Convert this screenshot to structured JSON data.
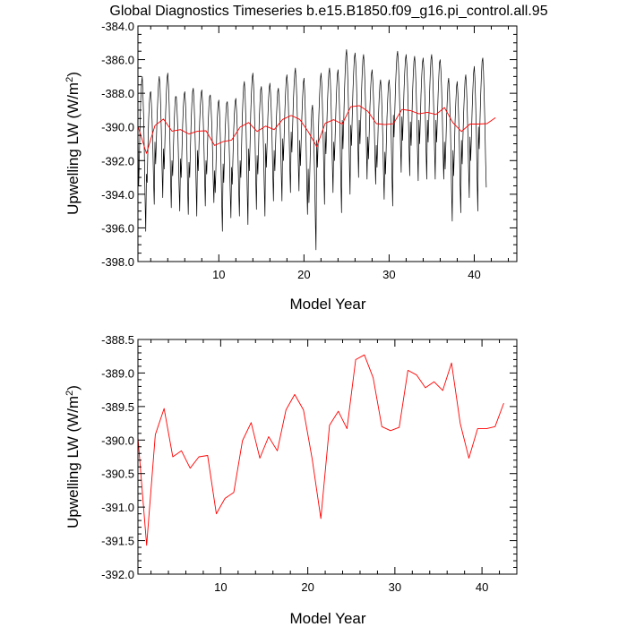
{
  "title": "Global Diagnostics Timeseries b.e15.B1850.f09_g16.pi_control.all.95",
  "chart_data": [
    {
      "type": "line",
      "xlabel": "Model Year",
      "ylabel_prefix": "Upwelling LW (W/m",
      "ylabel_sup": "2",
      "ylabel_suffix": ")",
      "xlim": [
        0.5,
        45
      ],
      "ylim": [
        -398.0,
        -384.0
      ],
      "xticks": [
        10,
        20,
        30,
        40
      ],
      "xtick_labels": [
        "10",
        "20",
        "30",
        "40"
      ],
      "yticks": [
        -398,
        -396,
        -394,
        -392,
        -390,
        -388,
        -386,
        -384
      ],
      "ytick_labels": [
        "-398.0",
        "-396.0",
        "-394.0",
        "-392.0",
        "-390.0",
        "-388.0",
        "-386.0",
        "-384.0"
      ],
      "x_minor_step": 2,
      "y_minor_step": 0.5,
      "series": [
        {
          "name": "monthly",
          "color": "#000000",
          "mode": "monthly",
          "start_year": 0.5,
          "dt": 0.08333,
          "values": [
            -390.0,
            -393.5,
            -391.9,
            -389.7,
            -388.3,
            -387.4,
            -387.0,
            -387.9,
            -389.3,
            -391.4,
            -394.1,
            -396.2,
            -392.8,
            -393.3,
            -391.3,
            -389.6,
            -388.6,
            -388.0,
            -387.9,
            -388.6,
            -389.6,
            -391.1,
            -393.1,
            -394.6,
            -390.9,
            -392.2,
            -390.8,
            -389.4,
            -388.3,
            -387.4,
            -387.0,
            -387.5,
            -388.6,
            -390.2,
            -392.4,
            -394.2,
            -391.3,
            -392.5,
            -390.9,
            -389.2,
            -388.0,
            -387.1,
            -386.8,
            -387.5,
            -388.7,
            -390.5,
            -392.9,
            -394.8,
            -392.0,
            -392.9,
            -391.3,
            -389.8,
            -388.8,
            -388.2,
            -388.2,
            -388.9,
            -390.0,
            -391.5,
            -393.5,
            -395.0,
            -391.9,
            -393.0,
            -391.5,
            -389.9,
            -388.8,
            -388.1,
            -387.9,
            -388.6,
            -389.8,
            -391.4,
            -393.5,
            -395.2,
            -392.1,
            -393.0,
            -391.3,
            -389.7,
            -388.6,
            -387.9,
            -387.7,
            -388.4,
            -389.7,
            -391.4,
            -393.6,
            -395.3,
            -391.4,
            -392.6,
            -391.2,
            -389.7,
            -388.7,
            -388.0,
            -387.8,
            -388.5,
            -389.6,
            -391.1,
            -393.1,
            -394.7,
            -392.0,
            -392.8,
            -391.2,
            -389.8,
            -388.8,
            -388.2,
            -388.1,
            -388.8,
            -389.8,
            -391.2,
            -393.1,
            -394.5,
            -392.6,
            -393.9,
            -392.4,
            -390.6,
            -389.4,
            -388.6,
            -388.4,
            -389.1,
            -390.4,
            -392.1,
            -394.4,
            -396.2,
            -392.2,
            -393.3,
            -391.7,
            -390.2,
            -389.2,
            -388.6,
            -388.5,
            -389.2,
            -390.3,
            -391.8,
            -393.8,
            -395.4,
            -392.4,
            -393.4,
            -391.8,
            -390.2,
            -389.2,
            -388.5,
            -388.3,
            -389.0,
            -390.1,
            -391.7,
            -393.7,
            -395.3,
            -392.0,
            -393.0,
            -391.4,
            -389.6,
            -388.4,
            -387.6,
            -387.3,
            -388.0,
            -389.4,
            -391.3,
            -393.8,
            -395.8,
            -391.3,
            -392.6,
            -391.0,
            -389.2,
            -388.0,
            -387.1,
            -386.8,
            -387.5,
            -388.8,
            -390.6,
            -393.0,
            -394.9,
            -391.7,
            -392.8,
            -391.2,
            -389.6,
            -388.6,
            -387.8,
            -387.6,
            -388.4,
            -389.6,
            -391.3,
            -393.5,
            -395.3,
            -391.0,
            -392.4,
            -391.0,
            -389.5,
            -388.5,
            -387.7,
            -387.4,
            -388.0,
            -389.1,
            -390.6,
            -392.7,
            -394.4,
            -391.4,
            -392.6,
            -391.0,
            -389.6,
            -388.6,
            -387.9,
            -387.7,
            -388.3,
            -389.3,
            -390.7,
            -392.7,
            -394.4,
            -390.7,
            -392.0,
            -390.6,
            -389.1,
            -388.0,
            -387.2,
            -386.9,
            -387.5,
            -388.6,
            -390.2,
            -392.3,
            -393.9,
            -390.3,
            -391.5,
            -390.0,
            -388.5,
            -387.5,
            -386.8,
            -386.5,
            -387.2,
            -388.3,
            -389.9,
            -392.1,
            -393.8,
            -390.8,
            -392.3,
            -390.9,
            -389.4,
            -388.3,
            -387.4,
            -387.1,
            -387.8,
            -389.1,
            -390.9,
            -393.3,
            -395.2,
            -392.5,
            -394.5,
            -393.1,
            -391.3,
            -390.0,
            -389.0,
            -388.7,
            -389.5,
            -390.9,
            -392.8,
            -395.3,
            -397.3,
            -390.8,
            -392.4,
            -390.9,
            -389.3,
            -388.1,
            -387.2,
            -386.8,
            -387.4,
            -388.6,
            -390.3,
            -392.6,
            -394.6,
            -390.3,
            -391.6,
            -390.2,
            -388.7,
            -387.6,
            -386.8,
            -386.5,
            -387.1,
            -388.3,
            -389.9,
            -392.1,
            -393.9,
            -390.9,
            -392.0,
            -390.5,
            -389.0,
            -387.8,
            -386.9,
            -386.6,
            -387.4,
            -388.8,
            -390.6,
            -393.1,
            -395.1,
            -389.6,
            -391.3,
            -389.8,
            -388.0,
            -386.8,
            -385.8,
            -385.4,
            -386.1,
            -387.5,
            -389.4,
            -392.0,
            -394.0,
            -389.9,
            -391.1,
            -389.5,
            -387.9,
            -386.8,
            -385.9,
            -385.6,
            -386.2,
            -387.4,
            -389.0,
            -391.2,
            -393.0,
            -389.6,
            -391.0,
            -389.6,
            -388.1,
            -386.9,
            -386.0,
            -385.7,
            -386.3,
            -387.5,
            -389.1,
            -391.3,
            -393.1,
            -390.6,
            -391.9,
            -390.4,
            -388.8,
            -387.7,
            -386.9,
            -386.6,
            -387.2,
            -388.3,
            -389.8,
            -391.8,
            -393.4,
            -391.1,
            -392.4,
            -391.0,
            -389.4,
            -388.3,
            -387.5,
            -387.2,
            -387.8,
            -389.0,
            -390.5,
            -392.6,
            -394.3,
            -391.5,
            -392.8,
            -391.2,
            -389.5,
            -388.4,
            -387.5,
            -387.2,
            -387.8,
            -389.0,
            -390.7,
            -392.9,
            -394.7,
            -389.3,
            -390.6,
            -389.2,
            -387.7,
            -386.6,
            -385.8,
            -385.5,
            -386.1,
            -387.2,
            -388.8,
            -391.0,
            -392.7,
            -389.4,
            -390.8,
            -389.4,
            -387.9,
            -386.8,
            -386.0,
            -385.7,
            -386.3,
            -387.4,
            -389.0,
            -391.1,
            -392.9,
            -389.7,
            -391.1,
            -389.7,
            -388.1,
            -387.0,
            -386.1,
            -385.8,
            -386.4,
            -387.6,
            -389.2,
            -391.4,
            -393.2,
            -389.6,
            -391.0,
            -389.6,
            -388.1,
            -387.0,
            -386.2,
            -385.9,
            -386.5,
            -387.6,
            -389.2,
            -391.3,
            -393.1,
            -389.6,
            -390.9,
            -389.5,
            -388.0,
            -386.9,
            -386.0,
            -385.7,
            -386.3,
            -387.5,
            -389.1,
            -391.3,
            -393.1,
            -389.6,
            -390.9,
            -389.5,
            -388.1,
            -387.0,
            -386.2,
            -386.0,
            -386.6,
            -387.7,
            -389.3,
            -391.4,
            -393.1,
            -390.9,
            -392.5,
            -391.0,
            -389.4,
            -388.3,
            -387.4,
            -387.1,
            -387.8,
            -389.2,
            -391.1,
            -393.7,
            -395.6,
            -391.4,
            -392.9,
            -391.3,
            -389.6,
            -388.5,
            -387.6,
            -387.3,
            -388.0,
            -389.3,
            -391.0,
            -393.3,
            -395.1,
            -390.8,
            -392.2,
            -390.7,
            -389.2,
            -388.1,
            -387.2,
            -386.9,
            -387.5,
            -388.7,
            -390.3,
            -392.4,
            -394.2,
            -390.6,
            -392.0,
            -390.6,
            -389.0,
            -387.8,
            -386.8,
            -386.4,
            -387.1,
            -388.5,
            -390.4,
            -392.9,
            -395.0,
            -390.0,
            -391.3,
            -389.8,
            -388.2,
            -387.0,
            -386.1,
            -385.9,
            -386.7,
            -388.0,
            -389.7,
            -391.9,
            -393.6
          ]
        },
        {
          "name": "annual",
          "color": "#ff0000",
          "mode": "annual",
          "start_year": 0.5,
          "values": [
            -389.96,
            -391.57,
            -389.92,
            -389.53,
            -390.25,
            -390.16,
            -390.42,
            -390.25,
            -390.23,
            -391.1,
            -390.87,
            -390.78,
            -390.01,
            -389.74,
            -390.27,
            -389.95,
            -390.16,
            -389.55,
            -389.32,
            -389.55,
            -390.28,
            -391.17,
            -389.78,
            -389.57,
            -389.83,
            -388.8,
            -388.73,
            -389.07,
            -389.8,
            -389.86,
            -389.81,
            -388.96,
            -389.03,
            -389.22,
            -389.13,
            -389.26,
            -388.85,
            -389.75,
            -390.27,
            -389.83,
            -389.83,
            -389.8,
            -389.45
          ]
        }
      ]
    },
    {
      "type": "line",
      "xlabel": "Model Year",
      "ylabel_prefix": "Upwelling LW (W/m",
      "ylabel_sup": "2",
      "ylabel_suffix": ")",
      "xlim": [
        0.5,
        44
      ],
      "ylim": [
        -392.0,
        -388.5
      ],
      "xticks": [
        10,
        20,
        30,
        40
      ],
      "xtick_labels": [
        "10",
        "20",
        "30",
        "40"
      ],
      "yticks": [
        -392.0,
        -391.5,
        -391.0,
        -390.5,
        -390.0,
        -389.5,
        -389.0,
        -388.5
      ],
      "ytick_labels": [
        "-392.0",
        "-391.5",
        "-391.0",
        "-390.5",
        "-390.0",
        "-389.5",
        "-389.0",
        "-388.5"
      ],
      "x_minor_step": 2,
      "y_minor_step": 0.1,
      "series": [
        {
          "name": "annual",
          "color": "#ff0000",
          "mode": "annual",
          "start_year": 0.5,
          "values": [
            -389.96,
            -391.57,
            -389.92,
            -389.53,
            -390.25,
            -390.16,
            -390.42,
            -390.25,
            -390.23,
            -391.1,
            -390.87,
            -390.78,
            -390.01,
            -389.74,
            -390.27,
            -389.95,
            -390.16,
            -389.55,
            -389.32,
            -389.55,
            -390.28,
            -391.17,
            -389.78,
            -389.57,
            -389.83,
            -388.8,
            -388.73,
            -389.07,
            -389.8,
            -389.86,
            -389.81,
            -388.96,
            -389.03,
            -389.22,
            -389.13,
            -389.26,
            -388.85,
            -389.75,
            -390.27,
            -389.83,
            -389.83,
            -389.8,
            -389.45
          ]
        }
      ]
    }
  ]
}
